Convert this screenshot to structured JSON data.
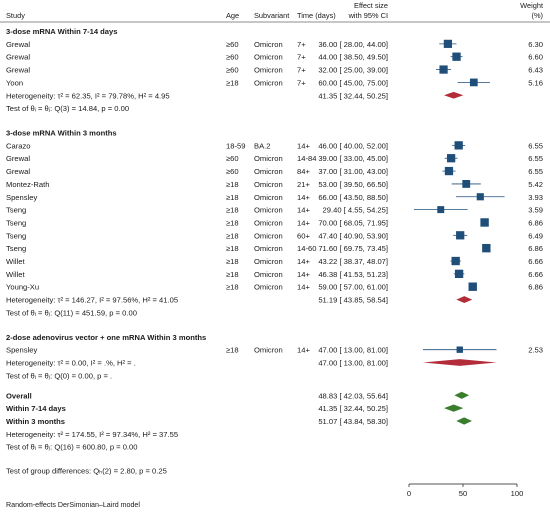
{
  "chart_data": {
    "type": "forest",
    "columns": {
      "study": "Study",
      "age": "Age",
      "subvariant": "Subvariant",
      "time": "Time (days)",
      "effect_line1": "Effect size",
      "effect_line2": "with 95% CI",
      "weight_line1": "Weight",
      "weight_line2": "(%)"
    },
    "xaxis": {
      "min": 0,
      "max": 100,
      "ticks": [
        0,
        50,
        100
      ]
    },
    "footer": "Random-effects DerSimonian–Laird model",
    "groups": [
      {
        "title": "3-dose mRNA Within 7-14 days",
        "studies": [
          {
            "study": "Grewal",
            "age": "≥60",
            "subvariant": "Omicron",
            "time": "7+",
            "es": 36.0,
            "lo": 28.0,
            "hi": 44.0,
            "ci": "36.00 [ 28.00, 44.00]",
            "weight": "6.30",
            "w": 6.3
          },
          {
            "study": "Grewal",
            "age": "≥60",
            "subvariant": "Omicron",
            "time": "7+",
            "es": 44.0,
            "lo": 38.5,
            "hi": 49.5,
            "ci": "44.00 [ 38.50, 49.50]",
            "weight": "6.60",
            "w": 6.6
          },
          {
            "study": "Grewal",
            "age": "≥60",
            "subvariant": "Omicron",
            "time": "7+",
            "es": 32.0,
            "lo": 25.0,
            "hi": 39.0,
            "ci": "32.00 [ 25.00, 39.00]",
            "weight": "6.43",
            "w": 6.43
          },
          {
            "study": "Yoon",
            "age": "≥18",
            "subvariant": "Omicron",
            "time": "7+",
            "es": 60.0,
            "lo": 45.0,
            "hi": 75.0,
            "ci": "60.00 [ 45.00, 75.00]",
            "weight": "5.16",
            "w": 5.16
          }
        ],
        "heterogeneity": "Heterogeneity: τ² = 62.35, I² = 79.78%, H² = 4.95",
        "pooled": {
          "es": 41.35,
          "lo": 32.44,
          "hi": 50.25,
          "ci": "41.35 [ 32.44, 50.25]"
        },
        "test": "Test of θᵢ = θⱼ: Q(3) = 14.84, p = 0.00"
      },
      {
        "title": "3-dose mRNA Within 3 months",
        "studies": [
          {
            "study": "Carazo",
            "age": "18-59",
            "subvariant": "BA.2",
            "time": "14+",
            "es": 46.0,
            "lo": 40.0,
            "hi": 52.0,
            "ci": "46.00 [ 40.00, 52.00]",
            "weight": "6.55",
            "w": 6.55
          },
          {
            "study": "Grewal",
            "age": "≥60",
            "subvariant": "Omicron",
            "time": "14-84",
            "es": 39.0,
            "lo": 33.0,
            "hi": 45.0,
            "ci": "39.00 [ 33.00, 45.00]",
            "weight": "6.55",
            "w": 6.55
          },
          {
            "study": "Grewal",
            "age": "≥60",
            "subvariant": "Omicron",
            "time": "84+",
            "es": 37.0,
            "lo": 31.0,
            "hi": 43.0,
            "ci": "37.00 [ 31.00, 43.00]",
            "weight": "6.55",
            "w": 6.55
          },
          {
            "study": "Montez-Rath",
            "age": "≥18",
            "subvariant": "Omicron",
            "time": "21+",
            "es": 53.0,
            "lo": 39.5,
            "hi": 66.5,
            "ci": "53.00 [ 39.50, 66.50]",
            "weight": "5.42",
            "w": 5.42
          },
          {
            "study": "Spensley",
            "age": "≥18",
            "subvariant": "Omicron",
            "time": "14+",
            "es": 66.0,
            "lo": 43.5,
            "hi": 88.5,
            "ci": "66.00 [ 43.50, 88.50]",
            "weight": "3.93",
            "w": 3.93
          },
          {
            "study": "Tseng",
            "age": "≥18",
            "subvariant": "Omicron",
            "time": "14+",
            "es": 29.4,
            "lo": 4.55,
            "hi": 54.25,
            "ci": "29.40 [  4.55, 54.25]",
            "weight": "3.59",
            "w": 3.59
          },
          {
            "study": "Tseng",
            "age": "≥18",
            "subvariant": "Omicron",
            "time": "14+",
            "es": 70.0,
            "lo": 68.05,
            "hi": 71.95,
            "ci": "70.00 [ 68.05, 71.95]",
            "weight": "6.86",
            "w": 6.86
          },
          {
            "study": "Tseng",
            "age": "≥18",
            "subvariant": "Omicron",
            "time": "60+",
            "es": 47.4,
            "lo": 40.9,
            "hi": 53.9,
            "ci": "47.40 [ 40.90, 53.90]",
            "weight": "6.49",
            "w": 6.49
          },
          {
            "study": "Tseng",
            "age": "≥18",
            "subvariant": "Omicron",
            "time": "14-60",
            "es": 71.6,
            "lo": 69.75,
            "hi": 73.45,
            "ci": "71.60 [ 69.75, 73.45]",
            "weight": "6.86",
            "w": 6.86
          },
          {
            "study": "Willet",
            "age": "≥18",
            "subvariant": "Omicron",
            "time": "14+",
            "es": 43.22,
            "lo": 38.37,
            "hi": 48.07,
            "ci": "43.22 [ 38.37, 48.07]",
            "weight": "6.66",
            "w": 6.66
          },
          {
            "study": "Willet",
            "age": "≥18",
            "subvariant": "Omicron",
            "time": "14+",
            "es": 46.38,
            "lo": 41.53,
            "hi": 51.23,
            "ci": "46.38 [ 41.53, 51.23]",
            "weight": "6.66",
            "w": 6.66
          },
          {
            "study": "Young-Xu",
            "age": "≥18",
            "subvariant": "Omicron",
            "time": "14+",
            "es": 59.0,
            "lo": 57.0,
            "hi": 61.0,
            "ci": "59.00 [ 57.00, 61.00]",
            "weight": "6.86",
            "w": 6.86
          }
        ],
        "heterogeneity": "Heterogeneity: τ² = 146.27, I² = 97.56%, H² = 41.05",
        "pooled": {
          "es": 51.19,
          "lo": 43.85,
          "hi": 58.54,
          "ci": "51.19 [ 43.85, 58.54]"
        },
        "test": "Test of θᵢ = θⱼ: Q(11) = 451.59, p = 0.00"
      },
      {
        "title": "2-dose adenovirus vector + one mRNA Within 3 months",
        "studies": [
          {
            "study": "Spensley",
            "age": "≥18",
            "subvariant": "Omicron",
            "time": "14+",
            "es": 47.0,
            "lo": 13.0,
            "hi": 81.0,
            "ci": "47.00 [ 13.00, 81.00]",
            "weight": "2.53",
            "w": 2.53
          }
        ],
        "heterogeneity": "Heterogeneity: τ² = 0.00, I² = .%, H² = .",
        "pooled": {
          "es": 47.0,
          "lo": 13.0,
          "hi": 81.0,
          "ci": "47.00 [ 13.00, 81.00]"
        },
        "test": "Test of θᵢ = θⱼ: Q(0) = 0.00, p = ."
      }
    ],
    "summaries": [
      {
        "label": "Overall",
        "es": 48.83,
        "lo": 42.03,
        "hi": 55.64,
        "ci": "48.83 [ 42.03, 55.64]"
      },
      {
        "label": "Within 7-14 days",
        "es": 41.35,
        "lo": 32.44,
        "hi": 50.25,
        "ci": "41.35 [ 32.44, 50.25]"
      },
      {
        "label": "Within 3 months",
        "es": 51.07,
        "lo": 43.84,
        "hi": 58.3,
        "ci": "51.07 [ 43.84, 58.30]"
      }
    ],
    "overall_heterogeneity": "Heterogeneity: τ² = 174.55, I² = 97.34%, H² = 37.55",
    "overall_test": "Test of θᵢ = θⱼ: Q(16) = 600.80, p = 0.00",
    "group_difference_test": "Test of group differences: Qₕ(2) = 2.80, p = 0.25",
    "colors": {
      "marker": "#1f4e79",
      "pooled_diamond": "#b22c3a",
      "summary_diamond": "#3a7d2c",
      "line": "#1f4e79"
    }
  }
}
